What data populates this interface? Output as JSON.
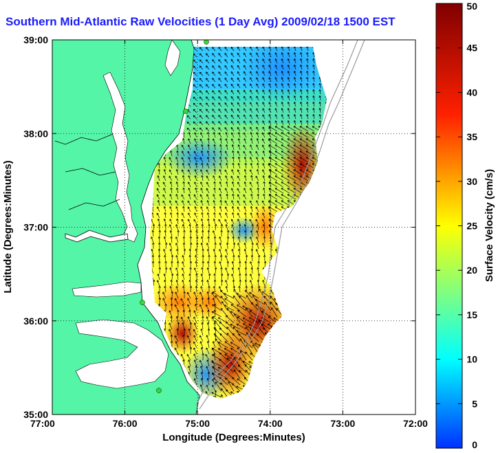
{
  "title": "Southern Mid-Atlantic Raw Velocities (1 Day Avg) 2009/02/18 1500 EST",
  "x_axis": {
    "label": "Longitude (Degrees:Minutes)",
    "ticks": [
      "77:00",
      "76:00",
      "75:00",
      "74:00",
      "73:00",
      "72:00"
    ]
  },
  "y_axis": {
    "label": "Latitude (Degrees:Minutes)",
    "ticks": [
      "39:00",
      "38:00",
      "37:00",
      "36:00",
      "35:00"
    ]
  },
  "colorbar": {
    "label": "Surface Velocity (cm/s)",
    "ticks": [
      "50",
      "45",
      "40",
      "35",
      "30",
      "25",
      "20",
      "15",
      "10",
      "5",
      "0"
    ],
    "min": 0,
    "max": 50
  },
  "colors": {
    "land": "#55f5a8",
    "title": "#1a1aff",
    "station": "#33dd33"
  }
}
